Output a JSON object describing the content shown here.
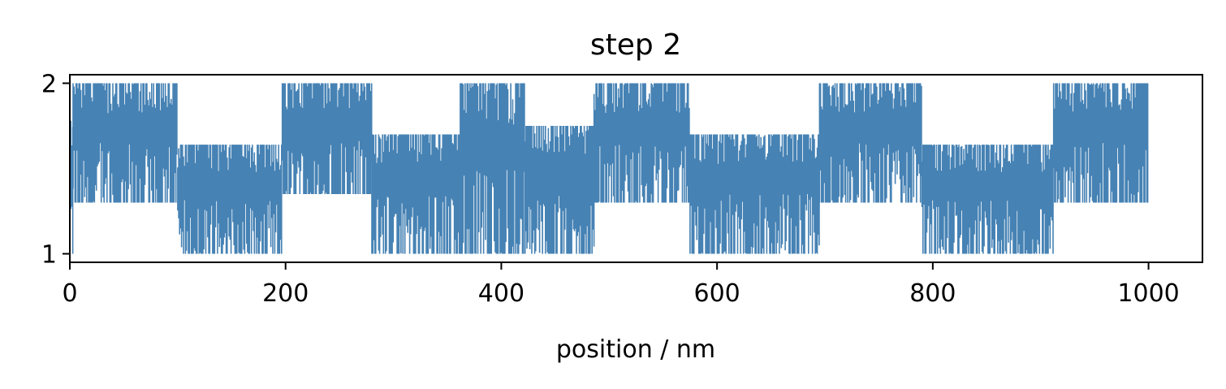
{
  "chart_data": {
    "type": "line",
    "title": "step 2",
    "xlabel": "position / nm",
    "ylabel": "",
    "xlim": [
      0,
      1050
    ],
    "ylim": [
      0.95,
      2.05
    ],
    "x_ticks": [
      0,
      200,
      400,
      600,
      800,
      1000
    ],
    "y_ticks": [
      1,
      2
    ],
    "grid": false,
    "series": [
      {
        "color": "#4682b4",
        "description_values": "high-frequency switching between 1 and 2; segments describe local envelope",
        "segments": [
          {
            "x_start": 0,
            "x_end": 3,
            "low": 1.0,
            "high": 1.78
          },
          {
            "x_start": 3,
            "x_end": 100,
            "low": 1.3,
            "high": 2.0
          },
          {
            "x_start": 100,
            "x_end": 197,
            "low": 1.0,
            "high": 1.64
          },
          {
            "x_start": 197,
            "x_end": 280,
            "low": 1.35,
            "high": 2.0
          },
          {
            "x_start": 280,
            "x_end": 362,
            "low": 1.0,
            "high": 1.7
          },
          {
            "x_start": 362,
            "x_end": 422,
            "low": 1.0,
            "high": 2.0
          },
          {
            "x_start": 422,
            "x_end": 486,
            "low": 1.0,
            "high": 1.75
          },
          {
            "x_start": 486,
            "x_end": 575,
            "low": 1.3,
            "high": 2.0
          },
          {
            "x_start": 575,
            "x_end": 695,
            "low": 1.0,
            "high": 1.7
          },
          {
            "x_start": 695,
            "x_end": 790,
            "low": 1.3,
            "high": 2.0
          },
          {
            "x_start": 790,
            "x_end": 912,
            "low": 1.0,
            "high": 1.64
          },
          {
            "x_start": 912,
            "x_end": 1000,
            "low": 1.3,
            "high": 2.0
          }
        ]
      }
    ]
  }
}
